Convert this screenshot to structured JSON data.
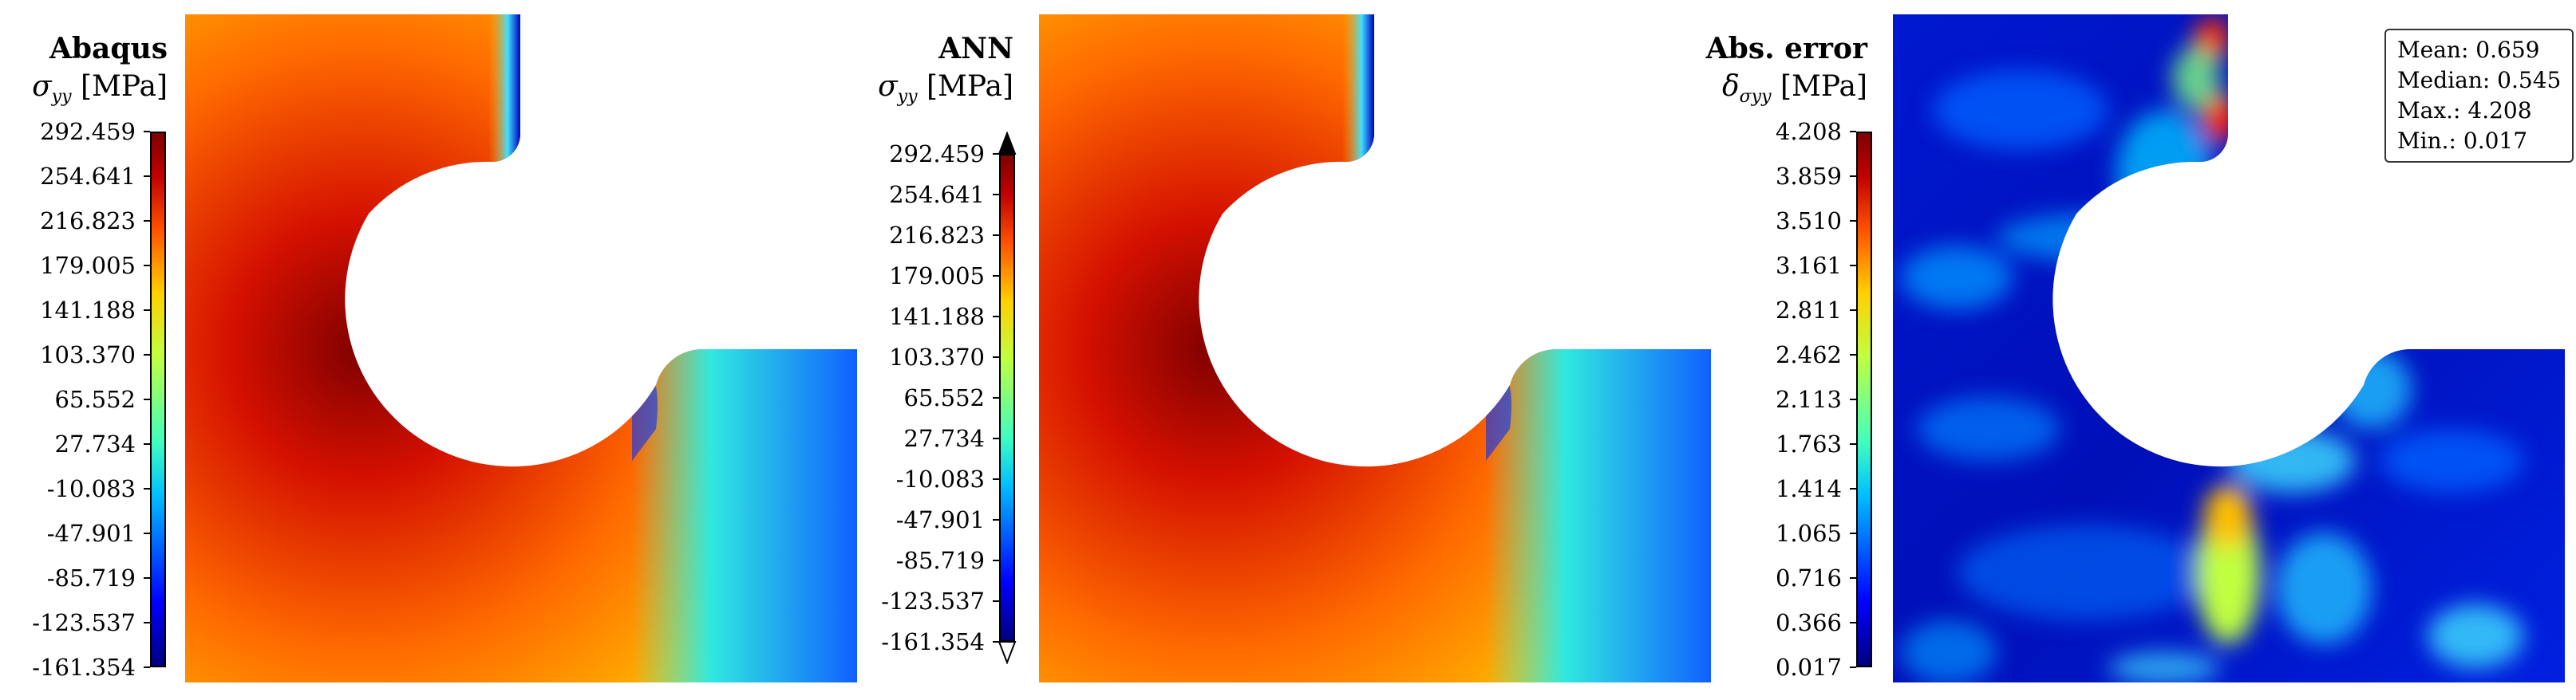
{
  "chart_data": [
    {
      "type": "heatmap",
      "title": "Abaqus",
      "colorbar_label": "σyy [MPa]",
      "colorbar_symbol": "σ",
      "colorbar_subscript": "yy",
      "colorbar_unit": "[MPa]",
      "colorbar_ticks": [
        "292.459",
        "254.641",
        "216.823",
        "179.005",
        "141.188",
        "103.370",
        "65.552",
        "27.734",
        "-10.083",
        "-47.901",
        "-85.719",
        "-123.537",
        "-161.354"
      ],
      "colorbar_range": [
        -161.354,
        292.459
      ],
      "colormap": "jet",
      "extend_arrows": false
    },
    {
      "type": "heatmap",
      "title": "ANN",
      "colorbar_label": "σyy [MPa]",
      "colorbar_symbol": "σ",
      "colorbar_subscript": "yy",
      "colorbar_unit": "[MPa]",
      "colorbar_ticks": [
        "292.459",
        "254.641",
        "216.823",
        "179.005",
        "141.188",
        "103.370",
        "65.552",
        "27.734",
        "-10.083",
        "-47.901",
        "-85.719",
        "-123.537",
        "-161.354"
      ],
      "colorbar_range": [
        -161.354,
        292.459
      ],
      "colormap": "jet",
      "extend_arrows": true
    },
    {
      "type": "heatmap",
      "title": "Abs. error",
      "colorbar_label": "δσyy [MPa]",
      "colorbar_symbol": "δ",
      "colorbar_subscript": "σyy",
      "colorbar_unit": "[MPa]",
      "colorbar_ticks": [
        "4.208",
        "3.859",
        "3.510",
        "3.161",
        "2.811",
        "2.462",
        "2.113",
        "1.763",
        "1.414",
        "1.065",
        "0.716",
        "0.366",
        "0.017"
      ],
      "colorbar_range": [
        0.017,
        4.208
      ],
      "colormap": "jet",
      "extend_arrows": false,
      "stats": [
        "Mean: 0.659",
        "Median: 0.545",
        "Max.: 4.208",
        "Min.: 0.017"
      ]
    }
  ],
  "colors": {
    "deep_red": "#7f0000",
    "red": "#d41000",
    "orange": "#ff8a00",
    "yellow": "#e8ff30",
    "cyan": "#30f0e0",
    "blue": "#0030ff",
    "navy": "#00007f"
  }
}
